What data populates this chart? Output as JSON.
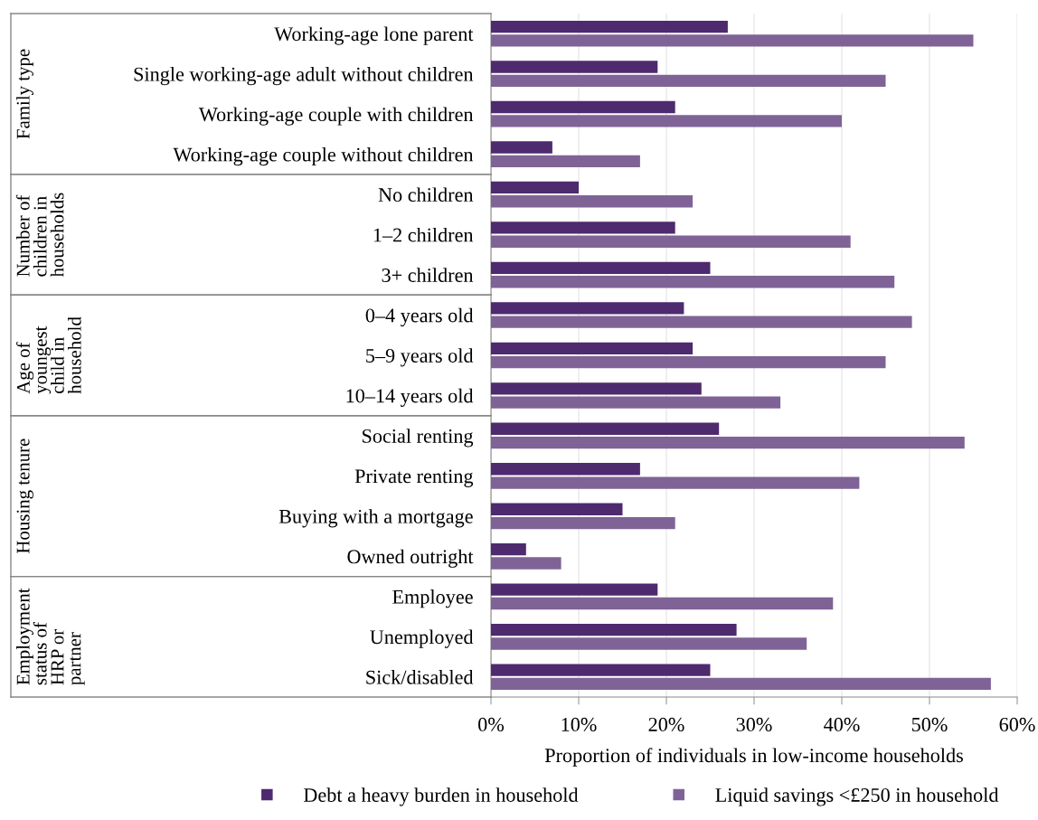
{
  "chart_data": {
    "type": "bar",
    "orientation": "horizontal",
    "xlabel": "Proportion of individuals in low-income households",
    "categories": [
      "Working-age lone parent",
      "Single working-age adult without children",
      "Working-age couple with children",
      "Working-age couple without children",
      "No children",
      "1–2 children",
      "3+ children",
      "0–4 years old",
      "5–9 years old",
      "10–14 years old",
      "Social renting",
      "Private renting",
      "Buying with a mortgage",
      "Owned outright",
      "Employee",
      "Unemployed",
      "Sick/disabled"
    ],
    "series": [
      {
        "name": "Debt a heavy burden in household",
        "color": "#4e2a6e",
        "values": [
          27,
          19,
          21,
          7,
          10,
          21,
          25,
          22,
          23,
          24,
          26,
          17,
          15,
          4,
          19,
          28,
          25
        ]
      },
      {
        "name": "Liquid savings <£250 in household",
        "color": "#7f6396",
        "values": [
          55,
          45,
          40,
          17,
          23,
          41,
          46,
          48,
          45,
          33,
          54,
          42,
          21,
          8,
          39,
          36,
          57
        ]
      }
    ],
    "xlim": [
      0,
      60
    ],
    "xticks": [
      {
        "value": 0,
        "label": "0%"
      },
      {
        "value": 10,
        "label": "10%"
      },
      {
        "value": 20,
        "label": "20%"
      },
      {
        "value": 30,
        "label": "30%"
      },
      {
        "value": 40,
        "label": "40%"
      },
      {
        "value": 50,
        "label": "50%"
      },
      {
        "value": 60,
        "label": "60%"
      }
    ],
    "grid": "x",
    "legend": "bottom",
    "annotations": [
      "Family type",
      "Number of\nchildren in\nhouseholds",
      "Age of\nyoungest\nchild in\nhousehold",
      "Housing tenure",
      "Employment\nstatus of\nHRP or\npartner"
    ]
  }
}
